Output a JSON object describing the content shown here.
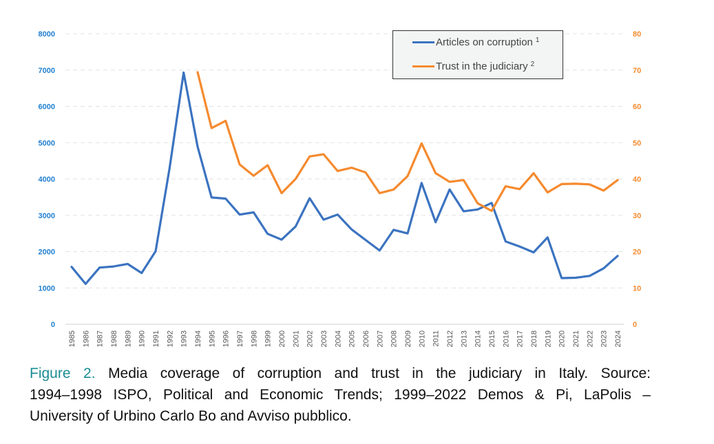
{
  "chart_data": {
    "type": "line",
    "title": "",
    "xlabel": "",
    "ylabel_left": "",
    "ylabel_right": "",
    "x": [
      1985,
      1986,
      1987,
      1988,
      1989,
      1990,
      1991,
      1992,
      1993,
      1994,
      1995,
      1996,
      1997,
      1998,
      1999,
      2000,
      2001,
      2002,
      2003,
      2004,
      2005,
      2006,
      2007,
      2008,
      2009,
      2010,
      2011,
      2012,
      2013,
      2014,
      2015,
      2016,
      2017,
      2018,
      2019,
      2020,
      2021,
      2022,
      2023,
      2024
    ],
    "y_left": {
      "range": [
        0,
        8000
      ],
      "ticks": [
        "0",
        "1000",
        "2000",
        "3000",
        "4000",
        "5000",
        "6000",
        "7000",
        "8000"
      ],
      "color": "#1f7fd0"
    },
    "y_right": {
      "range": [
        0,
        80
      ],
      "ticks": [
        "0",
        "10",
        "20",
        "30",
        "40",
        "50",
        "60",
        "70",
        "80"
      ],
      "color": "#f58a2e"
    },
    "grid": true,
    "legend_placement": "top-right",
    "series": [
      {
        "name": "Articles on corruption",
        "footnote": "1",
        "axis": "left",
        "color": "#3b73c0",
        "values": [
          1580,
          1110,
          1560,
          1590,
          1660,
          1410,
          2010,
          4300,
          6930,
          4890,
          3490,
          3460,
          3020,
          3080,
          2490,
          2330,
          2690,
          3470,
          2880,
          3020,
          2610,
          2320,
          2030,
          2600,
          2500,
          3890,
          2810,
          3710,
          3110,
          3160,
          3340,
          2280,
          2140,
          1980,
          2390,
          1270,
          1280,
          1330,
          1540,
          1880
        ]
      },
      {
        "name": "Trust in the judiciary",
        "footnote": "2",
        "axis": "right",
        "color": "#f58a2e",
        "values": [
          null,
          null,
          null,
          null,
          null,
          null,
          null,
          null,
          null,
          69.4,
          54.0,
          56.0,
          44.0,
          40.9,
          43.8,
          36.1,
          40.0,
          46.2,
          46.8,
          42.2,
          43.1,
          41.8,
          36.1,
          37.1,
          40.8,
          49.8,
          41.6,
          39.2,
          39.7,
          33.3,
          31.2,
          38.0,
          37.2,
          41.6,
          36.3,
          38.6,
          38.7,
          38.5,
          36.8,
          39.7
        ]
      }
    ]
  },
  "caption": {
    "label": "Figure 2.",
    "line1": "Media coverage of corruption and trust in the judiciary in Italy. Source:",
    "line2": "1994–1998 ISPO, Political and Economic Trends; 1999–2022 Demos & Pi, LaPolis –",
    "line3": "University of Urbino Carlo Bo and Avviso pubblico."
  }
}
